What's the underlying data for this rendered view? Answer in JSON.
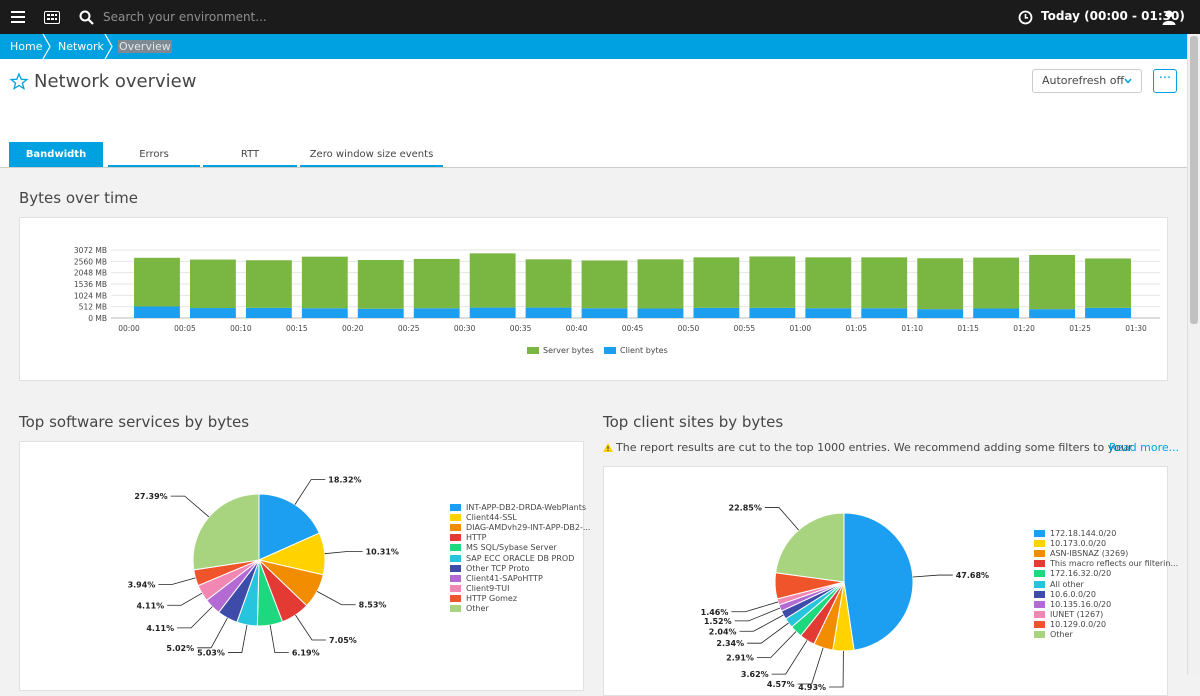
{
  "topbar": {
    "search_placeholder": "Search your environment...",
    "timeframe": "Today (00:00 - 01:30)"
  },
  "breadcrumb": [
    "Home",
    "Network",
    "Overview"
  ],
  "page": {
    "title": "Network overview",
    "autorefresh_label": "Autorefresh off",
    "more_label": "···"
  },
  "tabs": [
    "Bandwidth",
    "Errors",
    "RTT",
    "Zero window size events"
  ],
  "sections": {
    "bytes_title": "Bytes over time",
    "services_title": "Top software services by bytes",
    "sites_title": "Top client sites by bytes"
  },
  "warning": {
    "text": "The report results are cut to the top 1000 entries. We recommend adding some filters to your",
    "link": "Read more..."
  },
  "colors": {
    "brand": "#00a1e0",
    "server": "#7ab742",
    "client": "#1c9ff0"
  },
  "chart_data": [
    {
      "type": "bar",
      "stacked": true,
      "categories": [
        "00:00",
        "00:05",
        "00:10",
        "00:15",
        "00:20",
        "00:25",
        "00:30",
        "00:35",
        "00:40",
        "00:45",
        "00:50",
        "00:55",
        "01:00",
        "01:05",
        "01:10",
        "01:15",
        "01:20",
        "01:25"
      ],
      "x_ticks": [
        "00:00",
        "00:05",
        "00:10",
        "00:15",
        "00:20",
        "00:25",
        "00:30",
        "00:35",
        "00:40",
        "00:45",
        "00:50",
        "00:55",
        "01:00",
        "01:05",
        "01:10",
        "01:15",
        "01:20",
        "01:25",
        "01:30"
      ],
      "y_ticks": [
        "0 MB",
        "512 MB",
        "1024 MB",
        "1536 MB",
        "2048 MB",
        "2560 MB",
        "3072 MB"
      ],
      "ylim": [
        0,
        3072
      ],
      "series": [
        {
          "name": "Server bytes",
          "color": "#7ab742",
          "values": [
            2200,
            2190,
            2150,
            2330,
            2200,
            2230,
            2450,
            2180,
            2160,
            2220,
            2280,
            2320,
            2300,
            2300,
            2300,
            2300,
            2450,
            2230
          ]
        },
        {
          "name": "Client bytes",
          "color": "#1c9ff0",
          "values": [
            520,
            450,
            460,
            440,
            420,
            440,
            470,
            470,
            440,
            430,
            460,
            460,
            440,
            440,
            400,
            430,
            400,
            460
          ]
        }
      ],
      "legend": "bottom-center",
      "grid": true
    },
    {
      "type": "pie",
      "labels": [
        "INT-APP-DB2-DRDA-WebPlants",
        "Client44-SSL",
        "DIAG-AMDvh29-INT-APP-DB2-...",
        "HTTP",
        "MS SQL/Sybase Server",
        "SAP ECC ORACLE DB PROD",
        "Other TCP Proto",
        "Client41-SAPoHTTP",
        "Client9-TUI",
        "HTTP Gomez",
        "Other"
      ],
      "values": [
        18.32,
        10.31,
        8.53,
        7.05,
        6.19,
        5.03,
        5.02,
        4.11,
        4.11,
        3.94,
        27.39
      ],
      "value_labels": [
        "18.32%",
        "10.31%",
        "8.53%",
        "7.05%",
        "6.19%",
        "5.03%",
        "5.02%",
        "4.11%",
        "4.11%",
        "3.94%",
        "27.39%"
      ],
      "colors": [
        "#1c9ff0",
        "#ffd200",
        "#f28c00",
        "#e43a34",
        "#1ed880",
        "#26c5dd",
        "#3e4ba8",
        "#b36ad2",
        "#f387b4",
        "#f0542a",
        "#a8d480"
      ],
      "legend": "right"
    },
    {
      "type": "pie",
      "labels": [
        "172.18.144.0/20",
        "10.173.0.0/20",
        "ASN-IBSNAZ (3269)",
        "This macro reflects our filterin...",
        "172.16.32.0/20",
        "All other",
        "10.6.0.0/20",
        "10.135.16.0/20",
        "IUNET (1267)",
        "10.129.0.0/20",
        "Other"
      ],
      "values": [
        47.68,
        4.93,
        4.57,
        3.62,
        2.91,
        2.34,
        2.04,
        1.52,
        1.46,
        6.09,
        22.85
      ],
      "value_labels": [
        "47.68%",
        "4.93%",
        "4.57%",
        "3.62%",
        "2.91%",
        "2.34%",
        "2.04%",
        "1.52%",
        "1.46%",
        "",
        "22.85%"
      ],
      "colors": [
        "#1c9ff0",
        "#ffd200",
        "#f28c00",
        "#e43a34",
        "#1ed880",
        "#26c5dd",
        "#3e4ba8",
        "#b36ad2",
        "#f387b4",
        "#f0542a",
        "#a8d480"
      ],
      "legend": "right"
    }
  ]
}
